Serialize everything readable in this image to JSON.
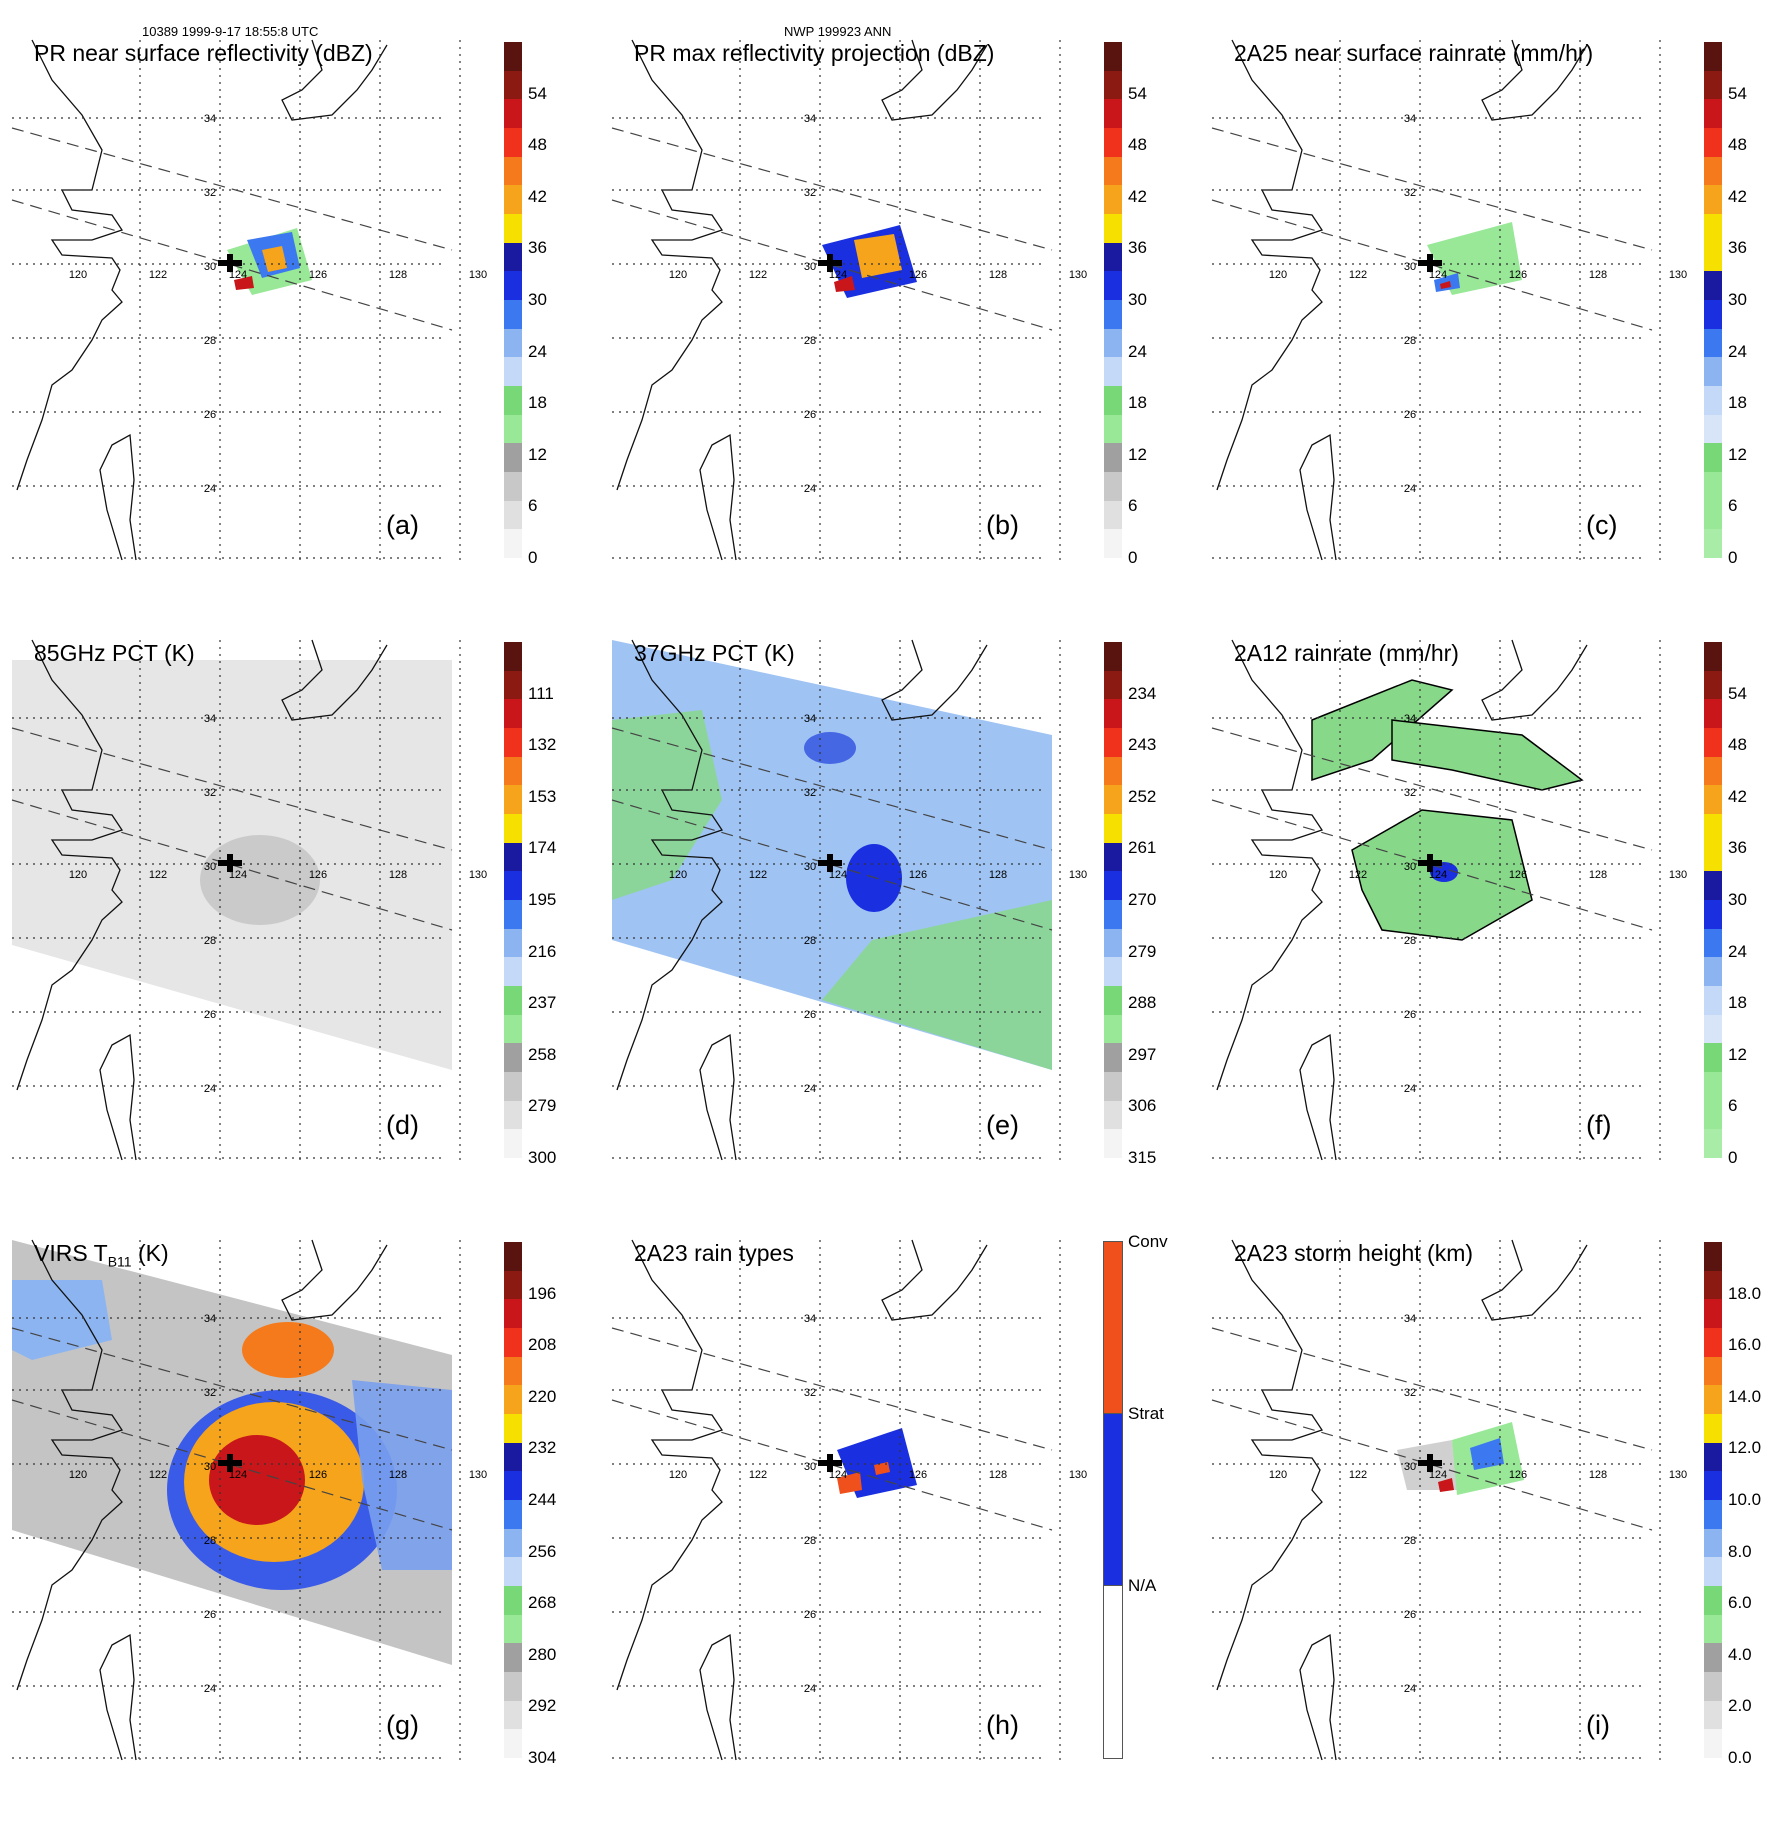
{
  "header": {
    "left": "10389 1999-9-17 18:55:8 UTC",
    "center": "NWP 199923 ANN"
  },
  "grid_labels": {
    "lon": [
      "120",
      "122",
      "124",
      "126",
      "128",
      "130"
    ],
    "lat": [
      "34",
      "32",
      "30",
      "28",
      "26",
      "24"
    ]
  },
  "colors": {
    "coast": "#111111",
    "grid": "#333333",
    "swath": "#444444",
    "green": "#88d88a",
    "blue": "#1a2fe0",
    "lightblue": "#8fb8f0",
    "orange": "#f58a1c",
    "red": "#c0161a",
    "gray_bg": "#d8d8d8"
  },
  "panels": [
    {
      "id": "a",
      "title": "PR near surface reflectivity (dBZ)",
      "label": "(a)",
      "colorbar": {
        "ticks": [
          "54",
          "48",
          "42",
          "36",
          "30",
          "24",
          "18",
          "12",
          "6",
          "0"
        ],
        "colors": [
          "#5a1410",
          "#8b1a12",
          "#c8161a",
          "#f0321c",
          "#f57a1c",
          "#f5a41c",
          "#f5e000",
          "#1a1aa0",
          "#1a30e0",
          "#3c78f0",
          "#8cb4f0",
          "#c4d8f8",
          "#78d878",
          "#98e898",
          "#a0a0a0",
          "#c8c8c8",
          "#e0e0e0",
          "#f4f4f4"
        ]
      }
    },
    {
      "id": "b",
      "title": "PR max reflectivity projection (dBZ)",
      "label": "(b)",
      "colorbar": {
        "ticks": [
          "54",
          "48",
          "42",
          "36",
          "30",
          "24",
          "18",
          "12",
          "6",
          "0"
        ],
        "colors": [
          "#5a1410",
          "#8b1a12",
          "#c8161a",
          "#f0321c",
          "#f57a1c",
          "#f5a41c",
          "#f5e000",
          "#1a1aa0",
          "#1a30e0",
          "#3c78f0",
          "#8cb4f0",
          "#c4d8f8",
          "#78d878",
          "#98e898",
          "#a0a0a0",
          "#c8c8c8",
          "#e0e0e0",
          "#f4f4f4"
        ]
      }
    },
    {
      "id": "c",
      "title": "2A25 near surface rainrate (mm/hr)",
      "label": "(c)",
      "colorbar": {
        "ticks": [
          "54",
          "48",
          "42",
          "36",
          "30",
          "24",
          "18",
          "12",
          "6",
          "0"
        ],
        "colors": [
          "#5a1410",
          "#8b1a12",
          "#c8161a",
          "#f0321c",
          "#f57a1c",
          "#f5a41c",
          "#f5e000",
          "#f5e000",
          "#1a1aa0",
          "#1a30e0",
          "#3c78f0",
          "#8cb4f0",
          "#c4d8f8",
          "#d8e4f8",
          "#78d878",
          "#98e898",
          "#98e898",
          "#a8eca8"
        ]
      }
    },
    {
      "id": "d",
      "title": "85GHz PCT (K)",
      "label": "(d)",
      "colorbar": {
        "ticks": [
          "111",
          "132",
          "153",
          "174",
          "195",
          "216",
          "237",
          "258",
          "279",
          "300"
        ],
        "colors": [
          "#5a1410",
          "#8b1a12",
          "#c8161a",
          "#f0321c",
          "#f57a1c",
          "#f5a41c",
          "#f5e000",
          "#1a1aa0",
          "#1a30e0",
          "#3c78f0",
          "#8cb4f0",
          "#c4d8f8",
          "#78d878",
          "#98e898",
          "#a0a0a0",
          "#c8c8c8",
          "#e0e0e0",
          "#f4f4f4"
        ]
      }
    },
    {
      "id": "e",
      "title": "37GHz PCT (K)",
      "label": "(e)",
      "colorbar": {
        "ticks": [
          "234",
          "243",
          "252",
          "261",
          "270",
          "279",
          "288",
          "297",
          "306",
          "315"
        ],
        "colors": [
          "#5a1410",
          "#8b1a12",
          "#c8161a",
          "#f0321c",
          "#f57a1c",
          "#f5a41c",
          "#f5e000",
          "#1a1aa0",
          "#1a30e0",
          "#3c78f0",
          "#8cb4f0",
          "#c4d8f8",
          "#78d878",
          "#98e898",
          "#a0a0a0",
          "#c8c8c8",
          "#e0e0e0",
          "#f4f4f4"
        ]
      }
    },
    {
      "id": "f",
      "title": "2A12 rainrate (mm/hr)",
      "label": "(f)",
      "colorbar": {
        "ticks": [
          "54",
          "48",
          "42",
          "36",
          "30",
          "24",
          "18",
          "12",
          "6",
          "0"
        ],
        "colors": [
          "#5a1410",
          "#8b1a12",
          "#c8161a",
          "#f0321c",
          "#f57a1c",
          "#f5a41c",
          "#f5e000",
          "#f5e000",
          "#1a1aa0",
          "#1a30e0",
          "#3c78f0",
          "#8cb4f0",
          "#c4d8f8",
          "#d8e4f8",
          "#78d878",
          "#98e898",
          "#98e898",
          "#a8eca8"
        ]
      }
    },
    {
      "id": "g",
      "title": "VIRS T",
      "title_sub": "B11",
      "title_tail": " (K)",
      "label": "(g)",
      "colorbar": {
        "ticks": [
          "196",
          "208",
          "220",
          "232",
          "244",
          "256",
          "268",
          "280",
          "292",
          "304"
        ],
        "colors": [
          "#5a1410",
          "#8b1a12",
          "#c8161a",
          "#f0321c",
          "#f57a1c",
          "#f5a41c",
          "#f5e000",
          "#1a1aa0",
          "#1a30e0",
          "#3c78f0",
          "#8cb4f0",
          "#c4d8f8",
          "#78d878",
          "#98e898",
          "#a0a0a0",
          "#c8c8c8",
          "#e0e0e0",
          "#f4f4f4"
        ]
      }
    },
    {
      "id": "h",
      "title": "2A23 rain types",
      "label": "(h)",
      "colorbar": {
        "ticks": [
          "Conv",
          "Strat",
          "N/A"
        ],
        "categorical": true,
        "colors": [
          "#f0501c",
          "#1a30e0",
          "#ffffff"
        ]
      }
    },
    {
      "id": "i",
      "title": "2A23 storm height (km)",
      "label": "(i)",
      "colorbar": {
        "ticks": [
          "18.0",
          "16.0",
          "14.0",
          "12.0",
          "10.0",
          "8.0",
          "6.0",
          "4.0",
          "2.0",
          "0.0"
        ],
        "colors": [
          "#5a1410",
          "#8b1a12",
          "#c8161a",
          "#f0321c",
          "#f57a1c",
          "#f5a41c",
          "#f5e000",
          "#1a1aa0",
          "#1a30e0",
          "#3c78f0",
          "#8cb4f0",
          "#c4d8f8",
          "#78d878",
          "#98e898",
          "#a0a0a0",
          "#c8c8c8",
          "#e0e0e0",
          "#f4f4f4"
        ]
      }
    }
  ]
}
